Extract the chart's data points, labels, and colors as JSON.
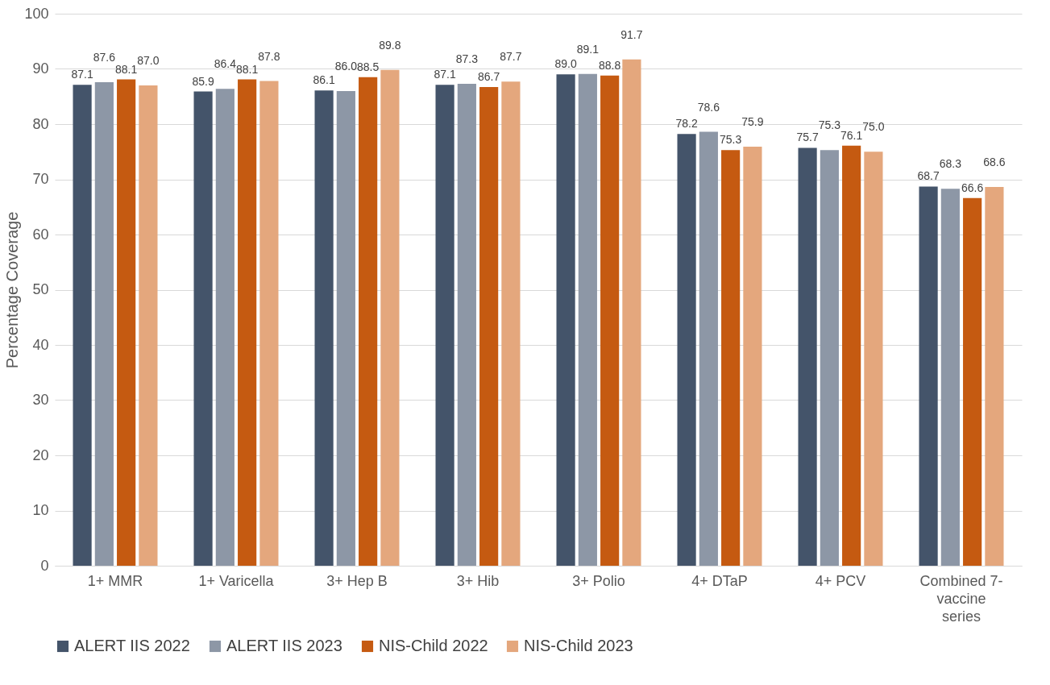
{
  "chart_data": {
    "type": "bar",
    "ylabel": "Percentage Coverage",
    "categories": [
      "1+ MMR",
      "1+ Varicella",
      "3+ Hep B",
      "3+ Hib",
      "3+ Polio",
      "4+ DTaP",
      "4+ PCV",
      "Combined 7-vaccine series"
    ],
    "series": [
      {
        "name": "ALERT IIS 2022",
        "color": "#44546a",
        "values": [
          87.1,
          85.9,
          86.1,
          87.1,
          89.0,
          78.2,
          75.7,
          68.7
        ],
        "value_labels": [
          "87.1",
          "85.9",
          "86.1",
          "87.1",
          "89.0",
          "78.2",
          "75.7",
          "68.7"
        ]
      },
      {
        "name": "ALERT IIS 2023",
        "color": "#8d97a6",
        "values": [
          87.6,
          86.4,
          86.0,
          87.3,
          89.1,
          78.6,
          75.3,
          68.3
        ],
        "value_labels": [
          "87.6",
          "86.4",
          "86.0",
          "87.3",
          "89.1",
          "78.6",
          "75.3",
          "68.3"
        ]
      },
      {
        "name": "NIS-Child 2022",
        "color": "#c55a11",
        "values": [
          88.1,
          88.1,
          88.5,
          86.7,
          88.8,
          75.3,
          76.1,
          66.6
        ],
        "value_labels": [
          "88.1",
          "88.1",
          "88.5",
          "86.7",
          "88.8",
          "75.3",
          "76.1",
          "66.6"
        ]
      },
      {
        "name": "NIS-Child 2023",
        "color": "#e4a77d",
        "values": [
          87.0,
          87.8,
          89.8,
          87.7,
          91.7,
          75.9,
          75.0,
          68.6
        ],
        "value_labels": [
          "87.0",
          "87.8",
          "89.8",
          "87.7",
          "91.7",
          "75.9",
          "75.0",
          "68.6"
        ]
      }
    ],
    "ylim": [
      0,
      100
    ],
    "yticks": [
      0,
      10,
      20,
      30,
      40,
      50,
      60,
      70,
      80,
      90,
      100
    ],
    "grid": "y",
    "legend": "bottom"
  }
}
